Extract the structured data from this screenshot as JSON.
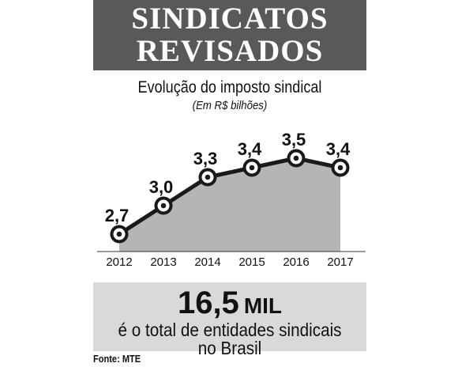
{
  "headline": {
    "line1": "SINDICATOS",
    "line2": "REVISADOS"
  },
  "chart_data": {
    "type": "area",
    "title": "Evolução do imposto sindical",
    "subtitle": "(Em R$ bilhões)",
    "categories": [
      "2012",
      "2013",
      "2014",
      "2015",
      "2016",
      "2017"
    ],
    "series": [
      {
        "values": [
          2.7,
          3.0,
          3.3,
          3.4,
          3.5,
          3.4
        ],
        "labels": [
          "2,7",
          "3,0",
          "3,3",
          "3,4",
          "3,5",
          "3,4"
        ]
      }
    ],
    "ylim": [
      2.55,
      3.65
    ],
    "grid": false,
    "colors": {
      "area": "#b5b5b5",
      "line": "#1a1a1a",
      "marker": "#ffffff"
    }
  },
  "stat": {
    "value": "16,5",
    "unit": "MIL",
    "description": "é o total de entidades sindicais no Brasil"
  },
  "source": "Fonte: MTE",
  "colors": {
    "header_band": "#595959",
    "footer_band": "#d9d9d9"
  }
}
